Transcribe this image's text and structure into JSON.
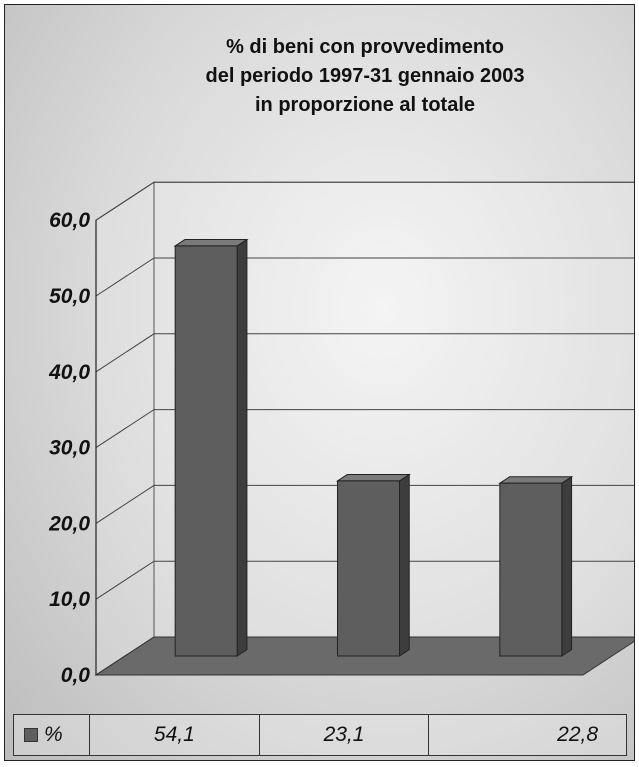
{
  "chart_data": {
    "type": "bar",
    "title_lines": [
      "% di beni con provvedimento",
      "del periodo 1997-31 gennaio 2003",
      "in proporzione al totale"
    ],
    "series": [
      {
        "name": "%",
        "values": [
          54.1,
          23.1,
          22.8
        ]
      }
    ],
    "value_labels": [
      "54,1",
      "23,1",
      "22,8"
    ],
    "y_ticks": [
      "0,0",
      "10,0",
      "20,0",
      "30,0",
      "40,0",
      "50,0",
      "60,0"
    ],
    "ylim": [
      0,
      60
    ],
    "grid": true,
    "three_d": true,
    "legend": "data table below chart",
    "colors": {
      "bar": "#5e5e5e",
      "floor": "#6a6a6a"
    }
  }
}
